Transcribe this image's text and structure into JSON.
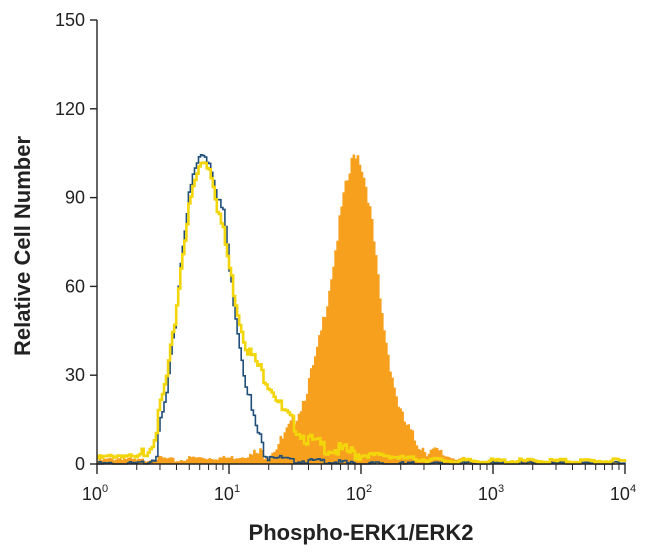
{
  "chart_data": {
    "type": "area",
    "title": "",
    "xlabel": "Phospho-ERK1/ERK2",
    "ylabel": "Relative Cell Number",
    "xscale": "log",
    "xlim": [
      1,
      10000
    ],
    "ylim": [
      0,
      150
    ],
    "grid": false,
    "legend": "none",
    "x_tick_labels": [
      {
        "base": "10",
        "exp": "0",
        "value": 1
      },
      {
        "base": "10",
        "exp": "1",
        "value": 10
      },
      {
        "base": "10",
        "exp": "2",
        "value": 100
      },
      {
        "base": "10",
        "exp": "3",
        "value": 1000
      },
      {
        "base": "10",
        "exp": "4",
        "value": 10000
      }
    ],
    "y_ticks": [
      0,
      30,
      60,
      90,
      120,
      150
    ],
    "series": [
      {
        "style": "filled",
        "color": "#F7A01E",
        "points": [
          [
            1,
            1
          ],
          [
            1.5,
            2
          ],
          [
            2,
            1
          ],
          [
            3,
            2
          ],
          [
            4,
            1
          ],
          [
            5,
            2
          ],
          [
            7,
            2
          ],
          [
            10,
            2
          ],
          [
            15,
            3
          ],
          [
            20,
            4
          ],
          [
            25,
            8
          ],
          [
            30,
            14
          ],
          [
            35,
            20
          ],
          [
            40,
            28
          ],
          [
            45,
            36
          ],
          [
            50,
            46
          ],
          [
            55,
            56
          ],
          [
            60,
            66
          ],
          [
            65,
            76
          ],
          [
            70,
            86
          ],
          [
            75,
            93
          ],
          [
            80,
            97
          ],
          [
            85,
            103
          ],
          [
            90,
            105
          ],
          [
            95,
            104
          ],
          [
            100,
            100
          ],
          [
            110,
            92
          ],
          [
            120,
            80
          ],
          [
            130,
            66
          ],
          [
            140,
            52
          ],
          [
            160,
            36
          ],
          [
            180,
            24
          ],
          [
            200,
            16
          ],
          [
            250,
            8
          ],
          [
            300,
            5
          ],
          [
            400,
            3
          ],
          [
            500,
            2
          ],
          [
            700,
            1
          ],
          [
            1000,
            1
          ],
          [
            10000,
            0
          ]
        ]
      },
      {
        "style": "line",
        "color": "#1F4E79",
        "points": [
          [
            1,
            0
          ],
          [
            2,
            0
          ],
          [
            2.5,
            1
          ],
          [
            2.8,
            4
          ],
          [
            3,
            14
          ],
          [
            3.3,
            22
          ],
          [
            3.7,
            40
          ],
          [
            4,
            55
          ],
          [
            4.5,
            78
          ],
          [
            5,
            92
          ],
          [
            5.5,
            100
          ],
          [
            6,
            104
          ],
          [
            6.5,
            105
          ],
          [
            7,
            102
          ],
          [
            7.5,
            98
          ],
          [
            8,
            92
          ],
          [
            9,
            84
          ],
          [
            9.5,
            78
          ],
          [
            10,
            65
          ],
          [
            11,
            52
          ],
          [
            12,
            40
          ],
          [
            13,
            30
          ],
          [
            14,
            24
          ],
          [
            15,
            16
          ],
          [
            16,
            12
          ],
          [
            18,
            5
          ],
          [
            20,
            3
          ],
          [
            25,
            2
          ],
          [
            30,
            1
          ],
          [
            40,
            1
          ],
          [
            50,
            1
          ],
          [
            100,
            0
          ],
          [
            10000,
            0
          ]
        ]
      },
      {
        "style": "line",
        "color": "#F2D50B",
        "points": [
          [
            1,
            2
          ],
          [
            1.5,
            3
          ],
          [
            2,
            2
          ],
          [
            2.5,
            6
          ],
          [
            2.8,
            12
          ],
          [
            3,
            20
          ],
          [
            3.3,
            28
          ],
          [
            3.7,
            42
          ],
          [
            4,
            55
          ],
          [
            4.5,
            75
          ],
          [
            5,
            88
          ],
          [
            5.5,
            96
          ],
          [
            6,
            101
          ],
          [
            6.5,
            103
          ],
          [
            7,
            100
          ],
          [
            7.5,
            96
          ],
          [
            8,
            88
          ],
          [
            9,
            78
          ],
          [
            10,
            66
          ],
          [
            11,
            56
          ],
          [
            12,
            48
          ],
          [
            13,
            42
          ],
          [
            14,
            38
          ],
          [
            15,
            36
          ],
          [
            16,
            34
          ],
          [
            18,
            30
          ],
          [
            20,
            27
          ],
          [
            22,
            24
          ],
          [
            25,
            18
          ],
          [
            30,
            14
          ],
          [
            35,
            10
          ],
          [
            40,
            8
          ],
          [
            50,
            6
          ],
          [
            60,
            5
          ],
          [
            80,
            4
          ],
          [
            100,
            3
          ],
          [
            150,
            3
          ],
          [
            200,
            2
          ],
          [
            500,
            1
          ],
          [
            1000,
            1
          ],
          [
            10000,
            1
          ]
        ]
      }
    ]
  }
}
